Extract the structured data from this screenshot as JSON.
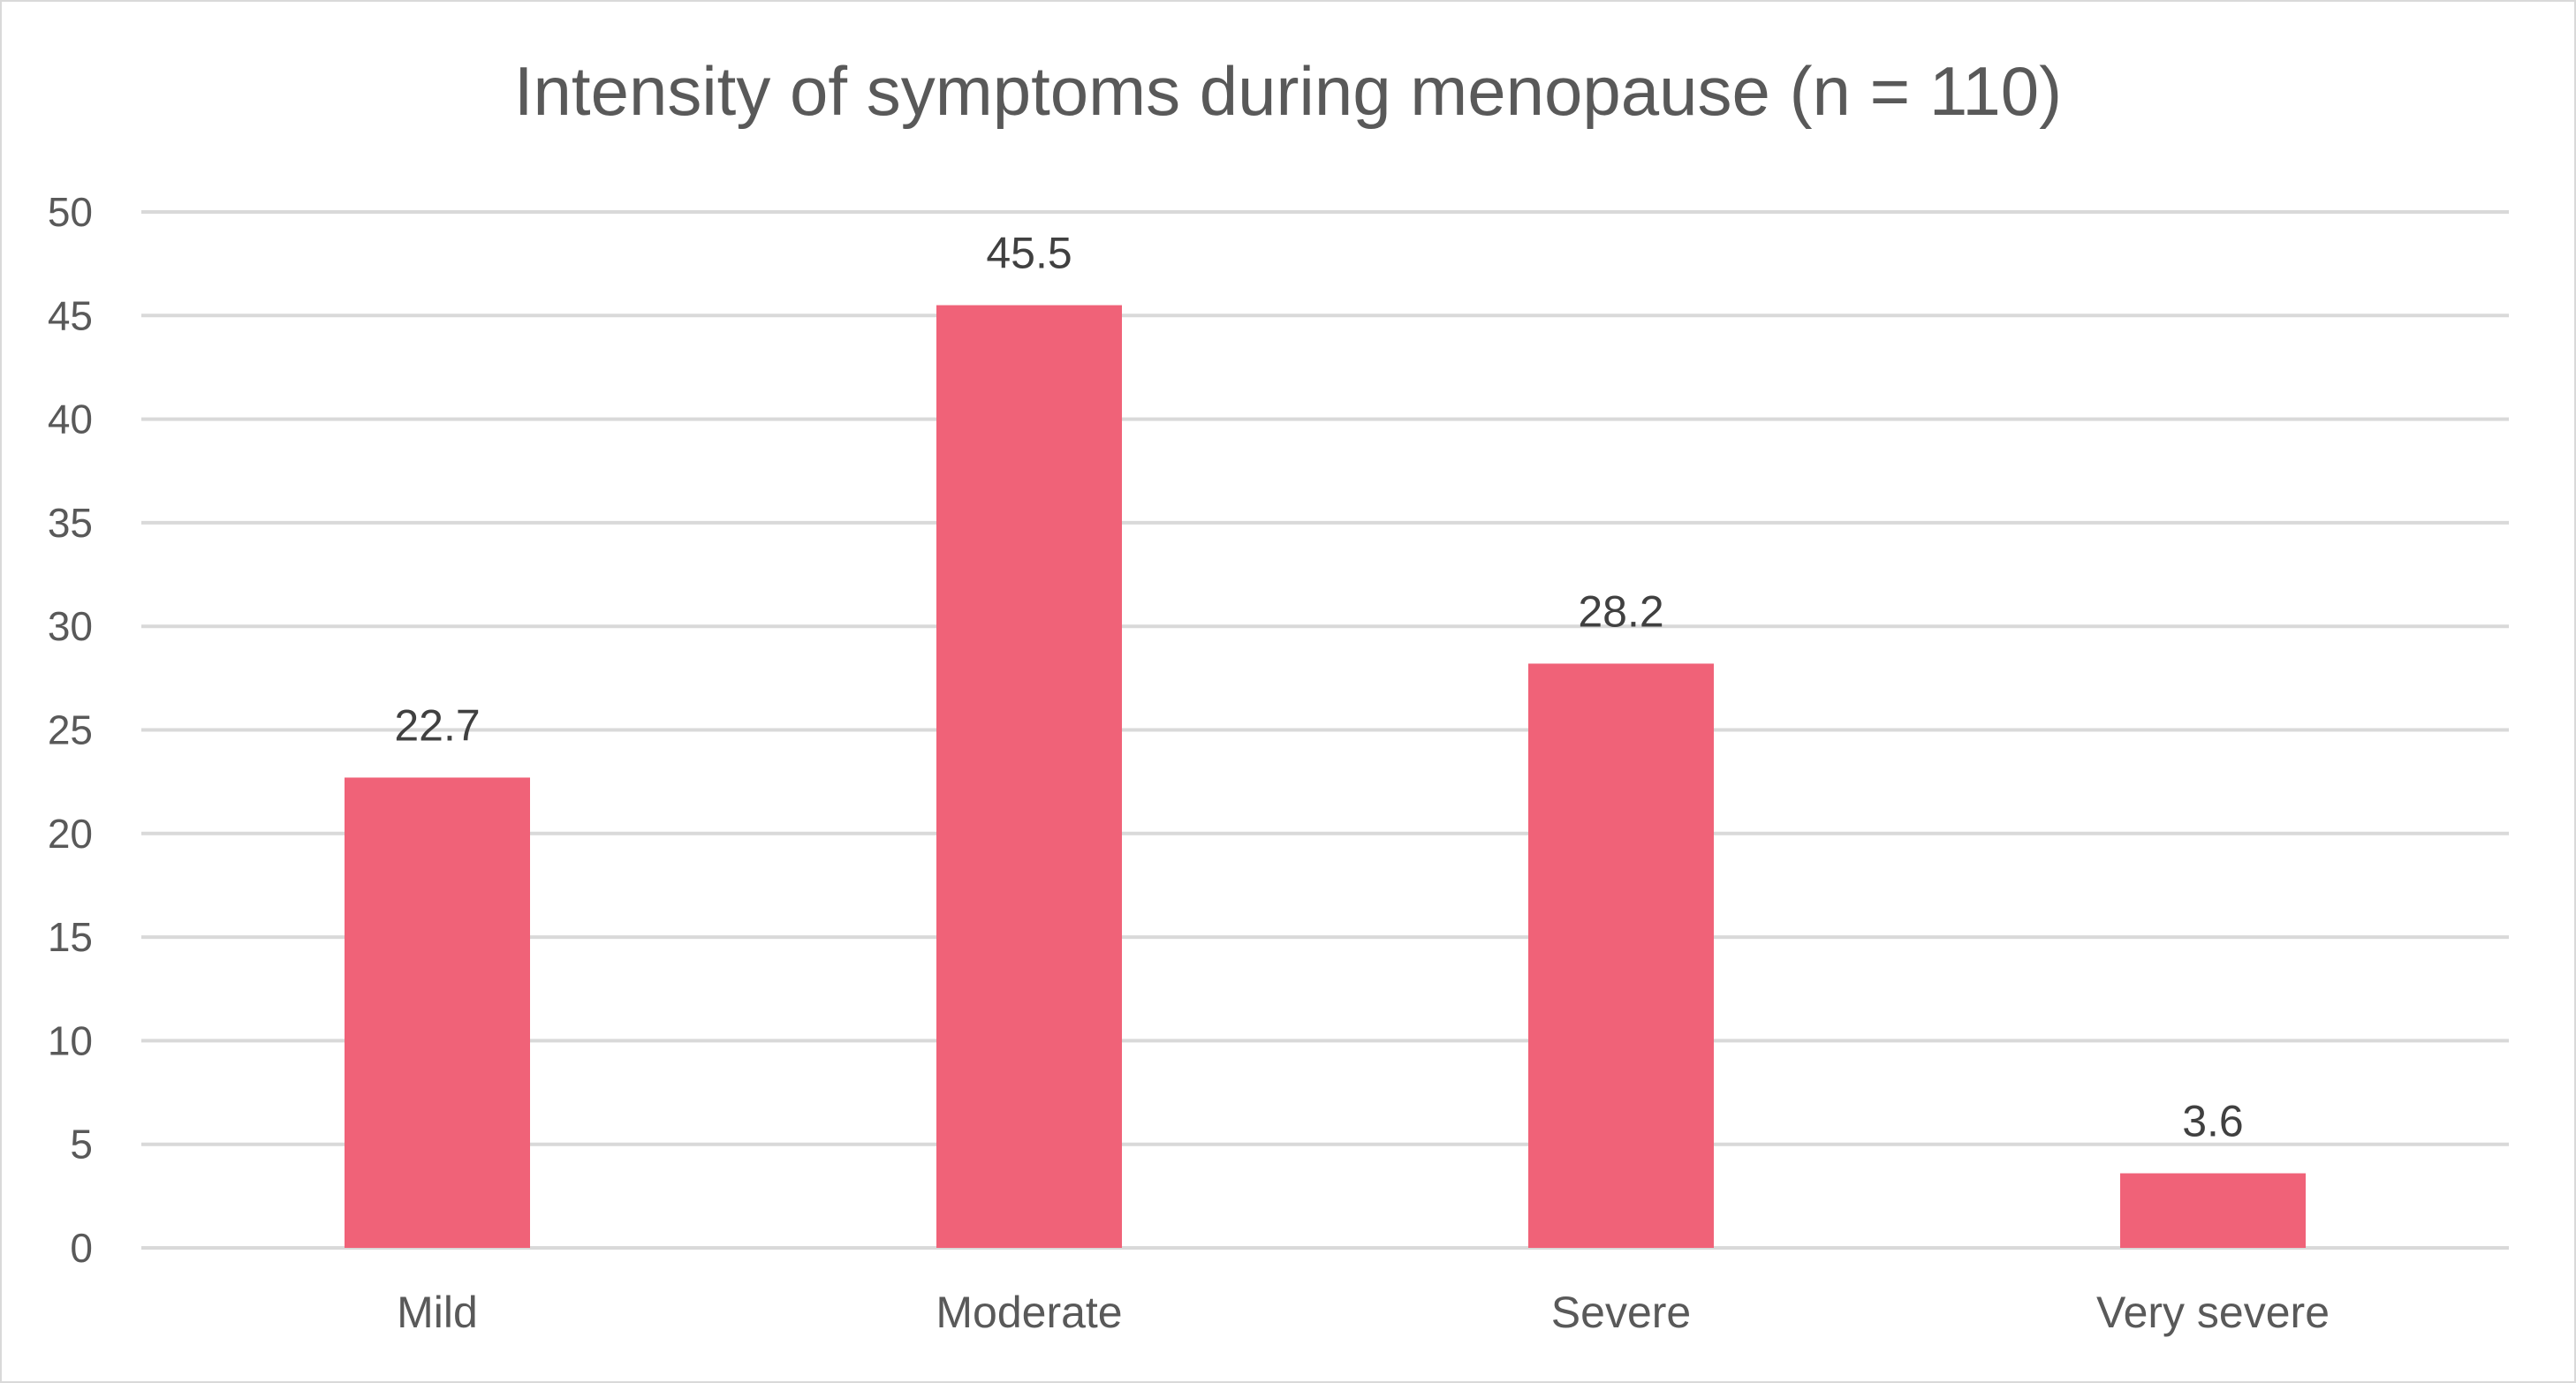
{
  "chart_data": {
    "type": "bar",
    "title": "Intensity of symptoms during menopause (n = 110)",
    "xlabel": "",
    "ylabel": "",
    "categories": [
      "Mild",
      "Moderate",
      "Severe",
      "Very severe"
    ],
    "series": [
      {
        "values": [
          22.7,
          45.5,
          28.2,
          3.6
        ],
        "color": "#f06278"
      }
    ],
    "data_labels": [
      "22.7",
      "45.5",
      "28.2",
      "3.6"
    ],
    "ylim": [
      0,
      50
    ],
    "yticks": [
      0,
      5,
      10,
      15,
      20,
      25,
      30,
      35,
      40,
      45,
      50
    ],
    "grid": true,
    "legend": "none",
    "colors": {
      "bar": "#f06278",
      "grid": "#d9d9d9",
      "text": "#595959"
    }
  }
}
